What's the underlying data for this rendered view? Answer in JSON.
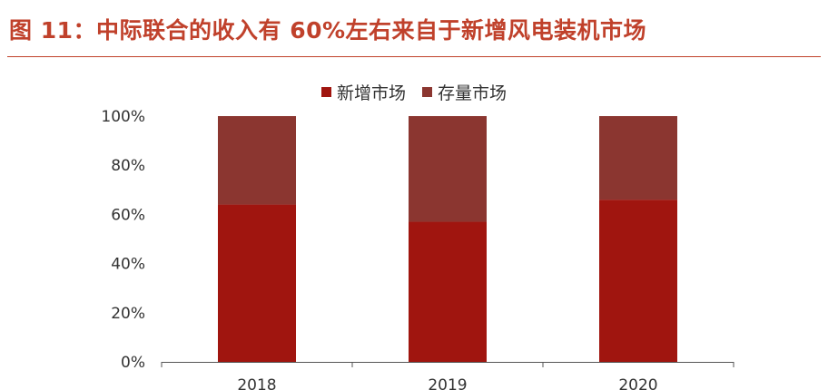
{
  "header": {
    "title": "图 11：中际联合的收入有 60%左右来自于新增风电装机市场"
  },
  "chart_data": {
    "type": "bar",
    "stacked": true,
    "categories": [
      "2018",
      "2019",
      "2020"
    ],
    "series": [
      {
        "name": "新增市场",
        "values": [
          64,
          57,
          66
        ],
        "color": "#a0150f"
      },
      {
        "name": "存量市场",
        "values": [
          36,
          43,
          34
        ],
        "color": "#8b3630"
      }
    ],
    "ylim": [
      0,
      100
    ],
    "yticks": [
      "0%",
      "20%",
      "40%",
      "60%",
      "80%",
      "100%"
    ],
    "legend_position": "top-center",
    "grid": false
  }
}
